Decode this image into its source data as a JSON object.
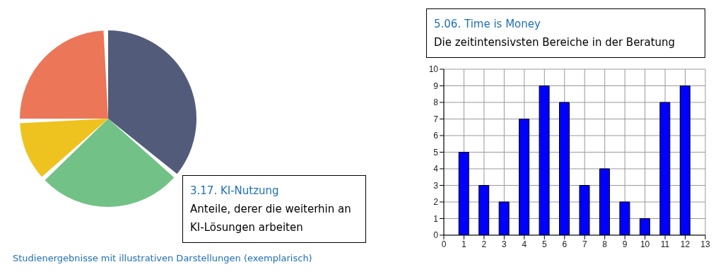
{
  "chart_data": [
    {
      "type": "pie",
      "title": "3.17. KI-Nutzung",
      "subtitle": "Anteile, derer die weiterhin an KI-Lösungen arbeiten",
      "categories": [
        null,
        null,
        null,
        null
      ],
      "values": [
        37,
        27,
        11,
        25
      ],
      "colors": [
        "#525c7a",
        "#72c287",
        "#eec31f",
        "#ec7658"
      ],
      "annotations": [
        "Studienergebnisse mit illustrativen Darstellungen (exemplarisch)"
      ]
    },
    {
      "type": "bar",
      "title": "5.06. Time is Money",
      "subtitle": "Die zeitintensivsten Bereiche in der Beratung",
      "x": [
        1,
        2,
        3,
        4,
        5,
        6,
        7,
        8,
        9,
        10,
        11,
        12
      ],
      "values": [
        5,
        3,
        2,
        7,
        9,
        8,
        3,
        4,
        2,
        1,
        8,
        9
      ],
      "color": "#0000ff",
      "xlim": [
        0,
        13
      ],
      "xticks": [
        0,
        1,
        2,
        3,
        4,
        5,
        6,
        7,
        8,
        9,
        10,
        11,
        12,
        13
      ],
      "ylim": [
        0,
        10
      ],
      "yticks": [
        0,
        1,
        2,
        3,
        4,
        5,
        6,
        7,
        8,
        9,
        10
      ],
      "grid": true
    }
  ]
}
